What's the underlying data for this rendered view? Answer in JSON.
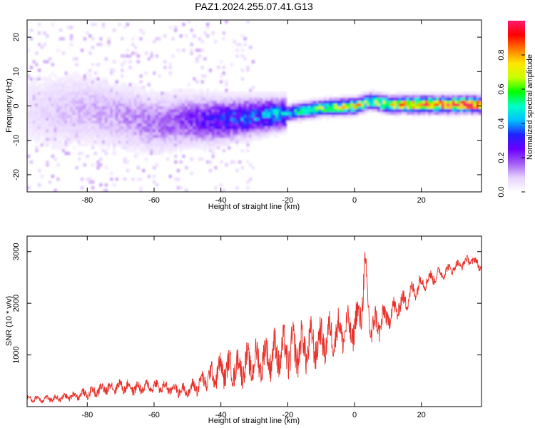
{
  "figure_title": "PAZ1.2024.255.07.41.G13",
  "chart_data": [
    {
      "type": "heatmap",
      "title": "",
      "xlabel": "Height of straight line (km)",
      "ylabel": "Frequency (Hz)",
      "xlim": [
        -98,
        38
      ],
      "ylim": [
        -25,
        25
      ],
      "xticks": [
        -80,
        -60,
        -40,
        -20,
        0,
        20
      ],
      "yticks": [
        -20,
        -10,
        0,
        10,
        20
      ],
      "colorbar": {
        "label": "Normalized spectral amplitude",
        "range": [
          0,
          1
        ],
        "ticks": [
          "0.0",
          "0.2",
          "0.4",
          "0.6",
          "0.8"
        ],
        "colormap": [
          "#ffffff",
          "#e6d2ff",
          "#a25cf2",
          "#6a00ff",
          "#2020ff",
          "#00bfff",
          "#00ffc8",
          "#00ff00",
          "#c8ff00",
          "#ffe600",
          "#ff7a00",
          "#ff0000",
          "#ff1a6e"
        ]
      },
      "ridge_frequency": {
        "x": [
          -98,
          -90,
          -80,
          -70,
          -60,
          -50,
          -40,
          -30,
          -20,
          -10,
          0,
          5,
          10,
          20,
          30,
          38
        ],
        "y": [
          -1,
          -1.5,
          -1,
          -3,
          -5,
          -4,
          -4,
          -3,
          -2,
          -0.5,
          0,
          1.5,
          0.5,
          0.5,
          0.5,
          0.5
        ]
      },
      "ridge_amplitude": {
        "x": [
          -98,
          -90,
          -80,
          -70,
          -60,
          -50,
          -40,
          -30,
          -20,
          -10,
          0,
          5,
          10,
          20,
          30,
          38
        ],
        "v": [
          0.05,
          0.08,
          0.1,
          0.12,
          0.15,
          0.2,
          0.3,
          0.35,
          0.45,
          0.55,
          0.7,
          0.6,
          0.7,
          0.85,
          0.9,
          0.85
        ]
      }
    },
    {
      "type": "line",
      "title": "",
      "xlabel": "Height of straight line (km)",
      "ylabel": "SNR (10 * v/v)",
      "xlim": [
        -98,
        38
      ],
      "ylim": [
        0,
        3300
      ],
      "xticks": [
        -80,
        -60,
        -40,
        -20,
        0,
        20
      ],
      "yticks": [
        1000,
        2000,
        3000
      ],
      "series": [
        {
          "color": "#e8312a",
          "x": [
            -98,
            -90,
            -85,
            -80,
            -75,
            -70,
            -65,
            -60,
            -55,
            -50,
            -45,
            -40,
            -35,
            -30,
            -25,
            -20,
            -15,
            -10,
            -5,
            0,
            2,
            3,
            5,
            10,
            15,
            20,
            25,
            30,
            35,
            38
          ],
          "y": [
            150,
            150,
            200,
            250,
            350,
            400,
            350,
            400,
            350,
            300,
            500,
            700,
            750,
            850,
            1000,
            1050,
            1150,
            1250,
            1450,
            1500,
            1900,
            2600,
            1500,
            1750,
            2050,
            2400,
            2550,
            2700,
            2850,
            2700
          ],
          "noise": [
            80,
            80,
            90,
            120,
            150,
            150,
            150,
            150,
            150,
            150,
            250,
            350,
            400,
            450,
            500,
            550,
            550,
            500,
            450,
            450,
            500,
            500,
            450,
            300,
            250,
            200,
            150,
            120,
            120,
            120
          ]
        }
      ]
    }
  ]
}
